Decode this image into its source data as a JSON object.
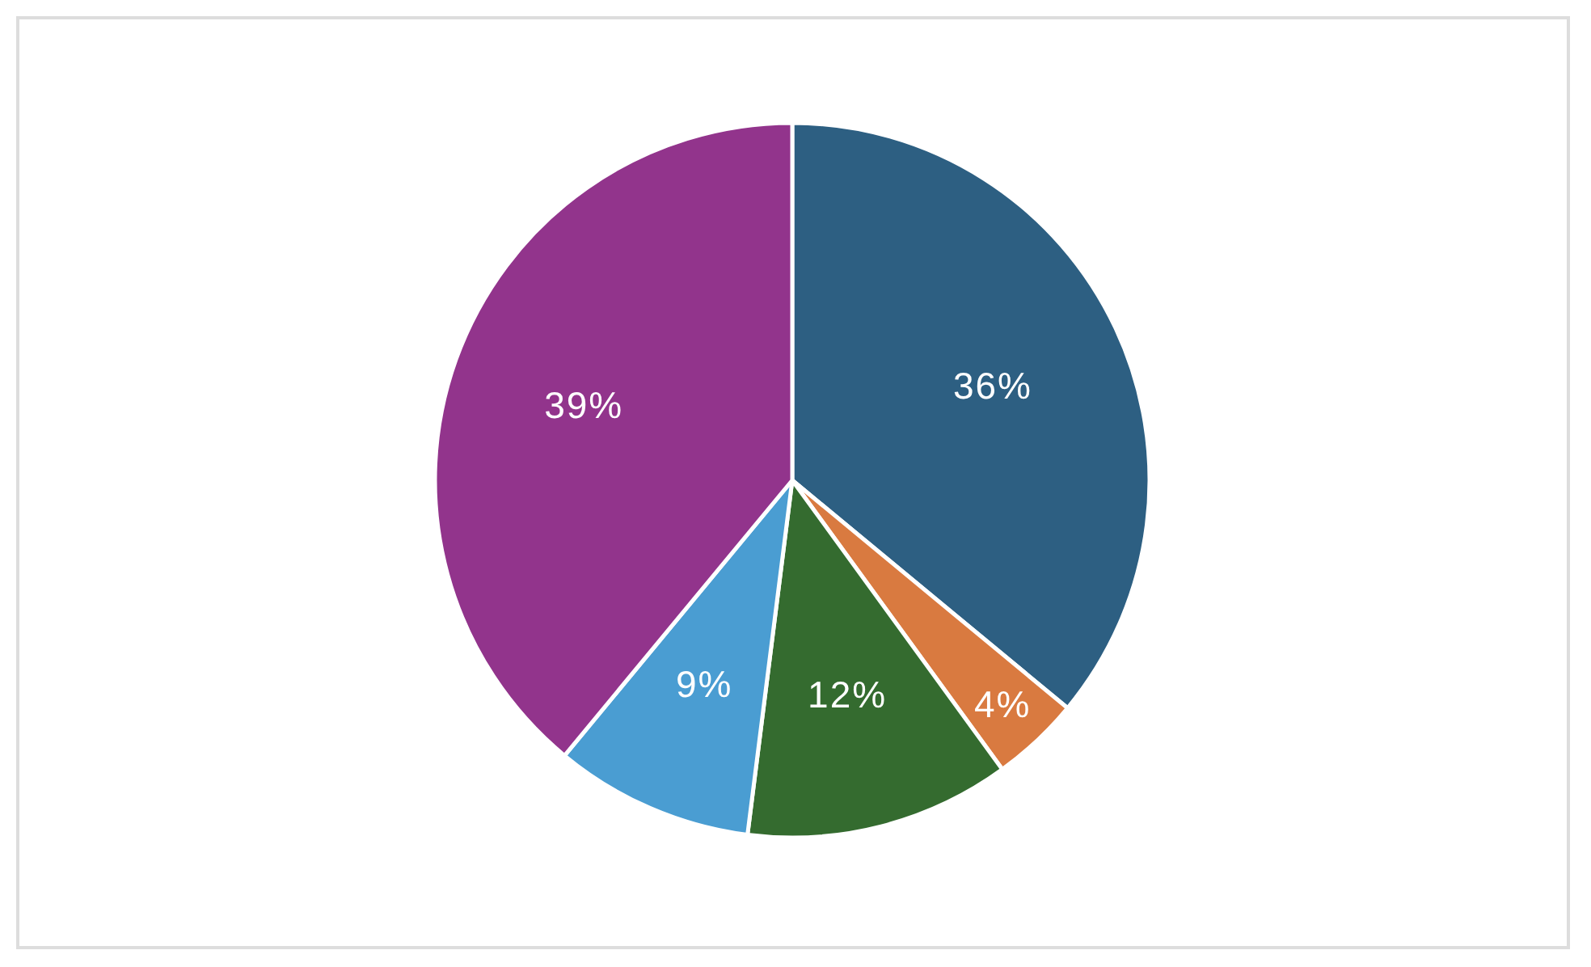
{
  "chart_data": {
    "type": "pie",
    "categories": [
      null,
      null,
      null,
      null,
      null
    ],
    "values": [
      36,
      4,
      12,
      9,
      39
    ],
    "colors": [
      "#2d5f82",
      "#d97a40",
      "#346b2f",
      "#4a9dd2",
      "#92348c"
    ],
    "value_labels": [
      "36%",
      "4%",
      "12%",
      "9%",
      "39%"
    ]
  }
}
